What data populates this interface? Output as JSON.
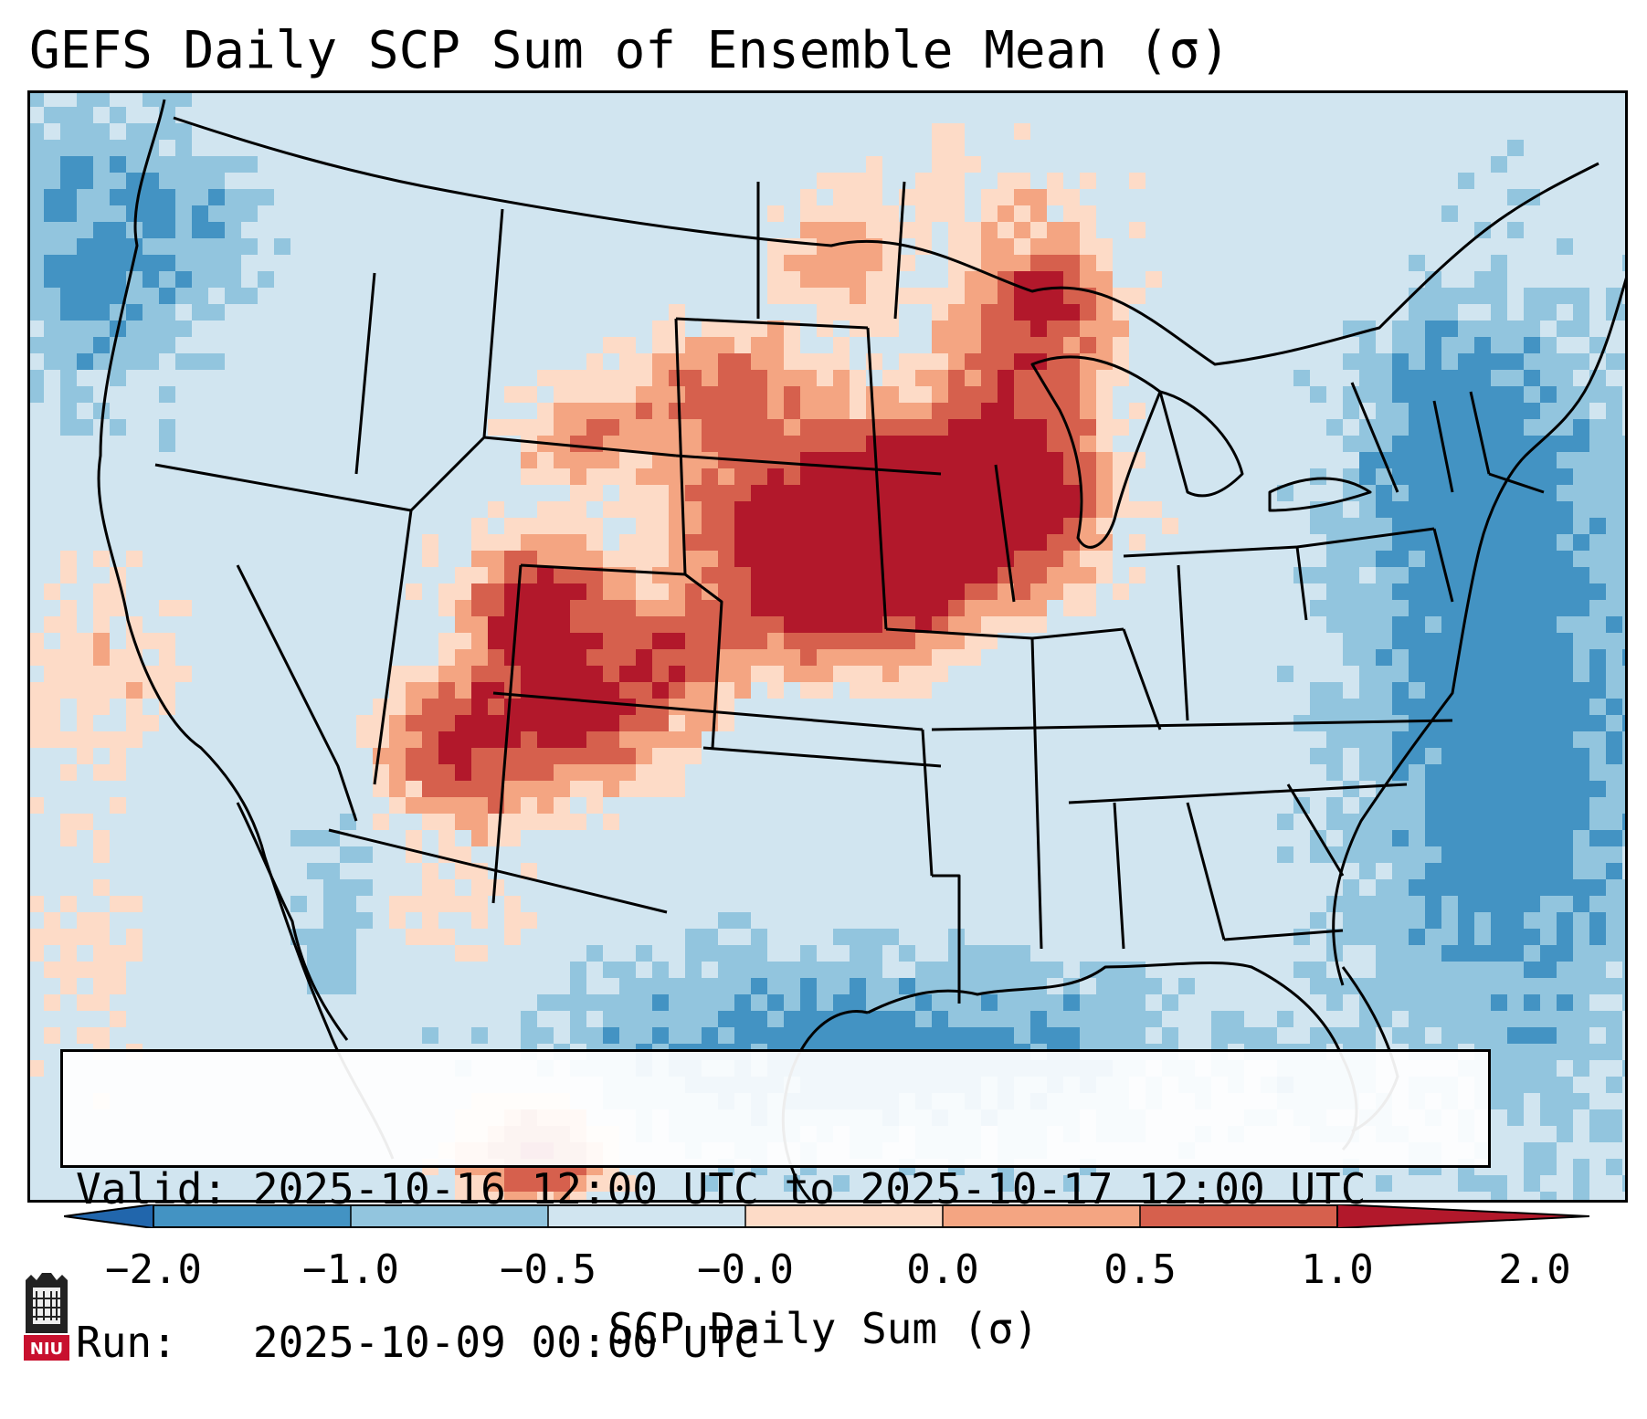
{
  "title": "GEFS Daily SCP Sum of Ensemble Mean (σ)",
  "info": {
    "valid_label": "Valid:",
    "valid_value": "2025-10-16 12:00 UTC to 2025-10-17 12:00 UTC",
    "run_label": "Run:",
    "run_value": "2025-10-09 00:00 UTC"
  },
  "colorbar": {
    "label": "SCP Daily Sum (σ)",
    "ticks": [
      "−2.0",
      "−1.0",
      "−0.5",
      "−0.0",
      "0.0",
      "0.5",
      "1.0",
      "2.0"
    ],
    "bin_colors": [
      "#4393c3",
      "#92c5de",
      "#d1e5f0",
      "#fddbc7",
      "#f4a582",
      "#d6604d"
    ],
    "under_color": "#2166ac",
    "over_color": "#b2182b"
  },
  "map": {
    "land_fill": "#d1e5f0",
    "border_color": "#000000",
    "anomaly_regions": [
      {
        "name": "upper-midwest-core",
        "level": "high"
      },
      {
        "name": "southwest-four-corners",
        "level": "high"
      },
      {
        "name": "northern-plains",
        "level": "moderate"
      },
      {
        "name": "gulf-of-mexico",
        "level": "low"
      },
      {
        "name": "western-atlantic",
        "level": "low"
      },
      {
        "name": "pacific-coast",
        "level": "low"
      }
    ]
  },
  "logo": {
    "text": "NIU"
  }
}
